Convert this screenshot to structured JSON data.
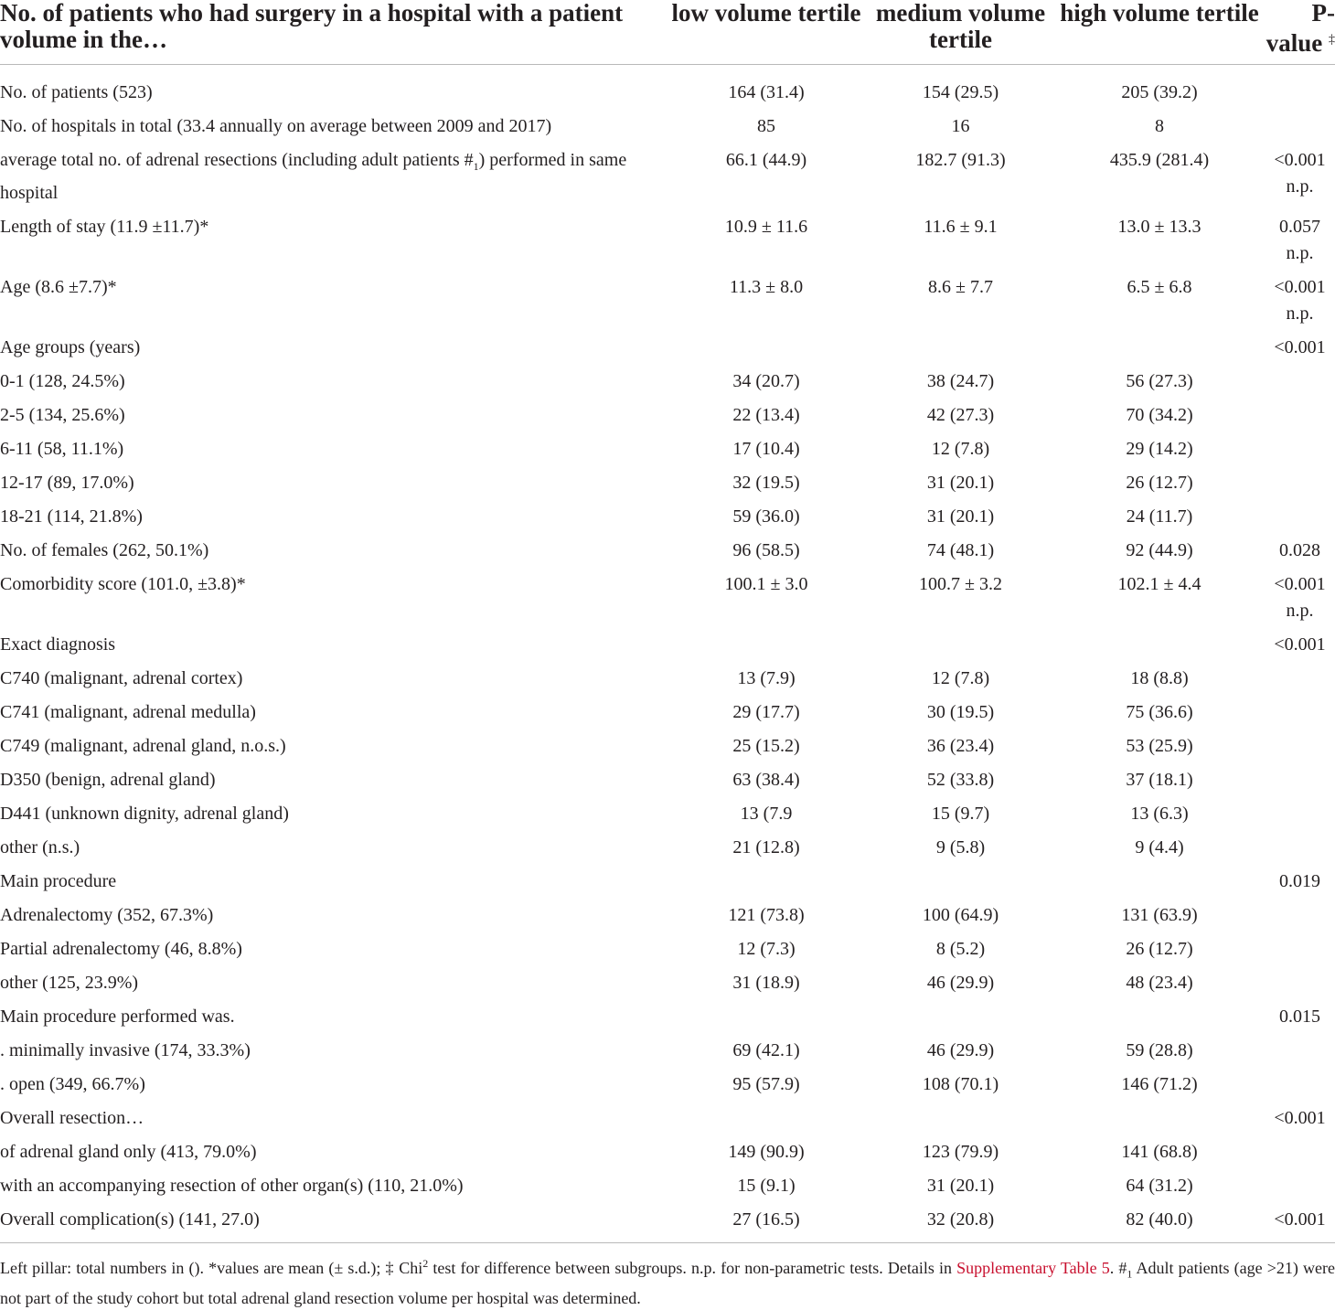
{
  "header": {
    "label": "No. of patients who had surgery in a hospital with a patient volume in the…",
    "col1": "low volume tertile",
    "col2": "medium volume tertile",
    "col3": "high volume tertile",
    "col4": "P-value",
    "col4_mark": "‡"
  },
  "rows": [
    {
      "label": "No. of patients (523)",
      "low": "164 (31.4)",
      "med": "154 (29.5)",
      "high": "205 (39.2)",
      "p": ""
    },
    {
      "label": "No. of hospitals in total (33.4 annually on average between 2009 and 2017)",
      "low": "85",
      "med": "16",
      "high": "8",
      "p": ""
    },
    {
      "label_a": "average total no. of adrenal resections (including adult patients #",
      "label_sub": "1",
      "label_b": ") performed in same hospital",
      "low": "66.1 (44.9)",
      "med": "182.7 (91.3)",
      "high": "435.9 (281.4)",
      "p": "<0.001 n.p."
    },
    {
      "label": "Length of stay (11.9 ±11.7)*",
      "low": "10.9 ± 11.6",
      "med": "11.6 ± 9.1",
      "high": "13.0 ± 13.3",
      "p": "0.057 n.p."
    },
    {
      "label": "Age (8.6 ±7.7)*",
      "low": "11.3 ± 8.0",
      "med": "8.6 ± 7.7",
      "high": "6.5 ± 6.8",
      "p": "<0.001 n.p."
    },
    {
      "label": "Age groups (years)",
      "low": "",
      "med": "",
      "high": "",
      "p": "<0.001"
    },
    {
      "label": "0-1 (128, 24.5%)",
      "low": "34 (20.7)",
      "med": "38 (24.7)",
      "high": "56 (27.3)",
      "p": ""
    },
    {
      "label": "2-5 (134, 25.6%)",
      "low": "22 (13.4)",
      "med": "42 (27.3)",
      "high": "70 (34.2)",
      "p": ""
    },
    {
      "label": "6-11 (58, 11.1%)",
      "low": "17 (10.4)",
      "med": "12 (7.8)",
      "high": "29 (14.2)",
      "p": ""
    },
    {
      "label": "12-17 (89, 17.0%)",
      "low": "32 (19.5)",
      "med": "31 (20.1)",
      "high": "26 (12.7)",
      "p": ""
    },
    {
      "label": "18-21 (114, 21.8%)",
      "low": "59 (36.0)",
      "med": "31 (20.1)",
      "high": "24 (11.7)",
      "p": ""
    },
    {
      "label": "No. of females (262, 50.1%)",
      "low": "96 (58.5)",
      "med": "74 (48.1)",
      "high": "92 (44.9)",
      "p": "0.028"
    },
    {
      "label": "Comorbidity score (101.0, ±3.8)*",
      "low": "100.1 ± 3.0",
      "med": "100.7 ± 3.2",
      "high": "102.1 ± 4.4",
      "p": "<0.001 n.p."
    },
    {
      "label": "Exact diagnosis",
      "low": "",
      "med": "",
      "high": "",
      "p": "<0.001"
    },
    {
      "label": "C740 (malignant, adrenal cortex)",
      "low": "13 (7.9)",
      "med": "12 (7.8)",
      "high": "18 (8.8)",
      "p": ""
    },
    {
      "label": "C741 (malignant, adrenal medulla)",
      "low": "29 (17.7)",
      "med": "30 (19.5)",
      "high": "75 (36.6)",
      "p": ""
    },
    {
      "label": "C749 (malignant, adrenal gland, n.o.s.)",
      "low": "25 (15.2)",
      "med": "36 (23.4)",
      "high": "53 (25.9)",
      "p": ""
    },
    {
      "label": "D350 (benign, adrenal gland)",
      "low": "63 (38.4)",
      "med": "52 (33.8)",
      "high": "37 (18.1)",
      "p": ""
    },
    {
      "label": "D441 (unknown dignity, adrenal gland)",
      "low": "13 (7.9",
      "med": "15 (9.7)",
      "high": "13 (6.3)",
      "p": ""
    },
    {
      "label": "other (n.s.)",
      "low": "21 (12.8)",
      "med": "9 (5.8)",
      "high": "9 (4.4)",
      "p": ""
    },
    {
      "label": "Main procedure",
      "low": "",
      "med": "",
      "high": "",
      "p": "0.019"
    },
    {
      "label": "Adrenalectomy (352, 67.3%)",
      "low": "121 (73.8)",
      "med": "100 (64.9)",
      "high": "131 (63.9)",
      "p": ""
    },
    {
      "label": "Partial adrenalectomy (46, 8.8%)",
      "low": "12 (7.3)",
      "med": "8 (5.2)",
      "high": "26 (12.7)",
      "p": ""
    },
    {
      "label": "other (125, 23.9%)",
      "low": "31 (18.9)",
      "med": "46 (29.9)",
      "high": "48 (23.4)",
      "p": ""
    },
    {
      "label": "Main procedure performed was.",
      "low": "",
      "med": "",
      "high": "",
      "p": "0.015"
    },
    {
      "label": ". minimally invasive (174, 33.3%)",
      "low": "69 (42.1)",
      "med": "46 (29.9)",
      "high": "59 (28.8)",
      "p": ""
    },
    {
      "label": ". open (349, 66.7%)",
      "low": "95 (57.9)",
      "med": "108 (70.1)",
      "high": "146 (71.2)",
      "p": ""
    },
    {
      "label": "Overall resection…",
      "low": "",
      "med": "",
      "high": "",
      "p": "<0.001"
    },
    {
      "label": "of adrenal gland only (413, 79.0%)",
      "low": "149 (90.9)",
      "med": "123 (79.9)",
      "high": "141 (68.8)",
      "p": ""
    },
    {
      "label": "with an accompanying resection of other organ(s) (110, 21.0%)",
      "low": "15 (9.1)",
      "med": "31 (20.1)",
      "high": "64 (31.2)",
      "p": ""
    },
    {
      "label": "Overall complication(s) (141, 27.0)",
      "low": "27 (16.5)",
      "med": "32 (20.8)",
      "high": "82 (40.0)",
      "p": "<0.001"
    }
  ],
  "footnote": {
    "part1": "Left pillar: total numbers in (). *values are mean (± s.d.); ‡ Chi",
    "sup": "2",
    "part2": " test for difference between subgroups. n.p. for non-parametric tests. Details in ",
    "link": "Supplementary Table 5",
    "part3": ". #",
    "sub": "1",
    "part4": " Adult patients (age >21) were not part of the study cohort but total adrenal gland resection volume per hospital was determined.",
    "link_color": "#c8102e"
  }
}
